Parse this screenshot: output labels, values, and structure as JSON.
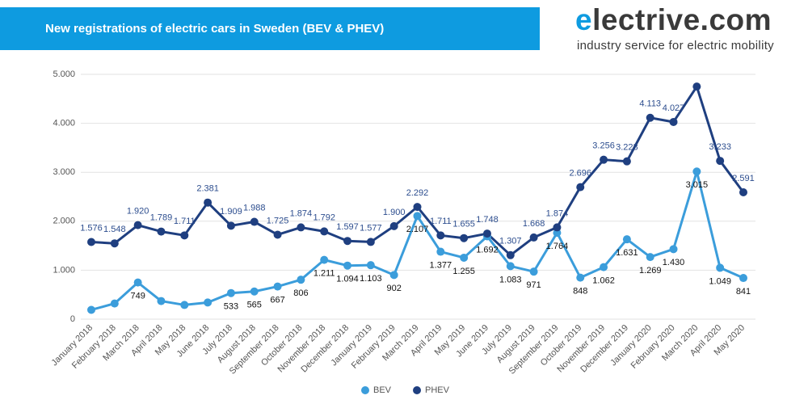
{
  "chart_data": {
    "type": "line",
    "title": "New registrations of electric cars in Sweden (BEV & PHEV)",
    "brand": "electrive.com",
    "tagline": "industry service for electric mobility",
    "categories": [
      "January 2018",
      "February 2018",
      "March 2018",
      "April 2018",
      "May 2018",
      "June 2018",
      "July 2018",
      "August 2018",
      "September 2018",
      "October 2018",
      "November 2018",
      "December 2018",
      "January 2019",
      "February 2019",
      "March 2019",
      "April 2019",
      "May 2019",
      "June 2019",
      "July 2019",
      "August 2019",
      "September 2019",
      "October 2019",
      "November 2019",
      "December 2019",
      "January 2020",
      "February 2020",
      "March 2020",
      "April 2020",
      "May 2020"
    ],
    "series": [
      {
        "name": "BEV",
        "color": "#3b9ddb",
        "values": [
          190,
          320,
          749,
          370,
          290,
          340,
          533,
          565,
          667,
          806,
          1211,
          1094,
          1103,
          902,
          2107,
          1377,
          1255,
          1692,
          1083,
          971,
          1764,
          848,
          1062,
          1631,
          1269,
          1430,
          3015,
          1049,
          841
        ],
        "value_labels": [
          null,
          null,
          "749",
          null,
          null,
          null,
          "533",
          "565",
          "667",
          "806",
          "1.211",
          "1.094",
          "1.103",
          "902",
          "2.107",
          "1.377",
          "1.255",
          "1.692",
          "1.083",
          "971",
          "1.764",
          "848",
          "1.062",
          "1.631",
          "1.269",
          "1.430",
          "3.015",
          "1.049",
          "841"
        ]
      },
      {
        "name": "PHEV",
        "color": "#1f3f80",
        "values": [
          1576,
          1548,
          1920,
          1789,
          1711,
          2381,
          1909,
          1988,
          1725,
          1874,
          1792,
          1597,
          1577,
          1900,
          2292,
          1711,
          1655,
          1748,
          1307,
          1668,
          1874,
          2696,
          3256,
          3223,
          4113,
          4027,
          4750,
          3233,
          2591
        ],
        "value_labels": [
          "1.576",
          "1.548",
          "1.920",
          "1.789",
          "1.711",
          "2.381",
          "1.909",
          "1.988",
          "1.725",
          "1.874",
          "1.792",
          "1.597",
          "1.577",
          "1.900",
          "2.292",
          "1.711",
          "1.655",
          "1.748",
          "1.307",
          "1.668",
          "1.874",
          "2.696",
          "3.256",
          "3.223",
          "4.113",
          "4.027",
          null,
          "3.233",
          "2.591"
        ]
      }
    ],
    "ylim": [
      0,
      5000
    ],
    "yticks": [
      0,
      {
        "value": 1000,
        "label": "1.000"
      },
      {
        "value": 2000,
        "label": "2.000"
      },
      {
        "value": 3000,
        "label": "3.000"
      },
      {
        "value": 4000,
        "label": "4.000"
      },
      {
        "value": 5000,
        "label": "5.000"
      }
    ],
    "grid": true,
    "legend": "bottom"
  }
}
